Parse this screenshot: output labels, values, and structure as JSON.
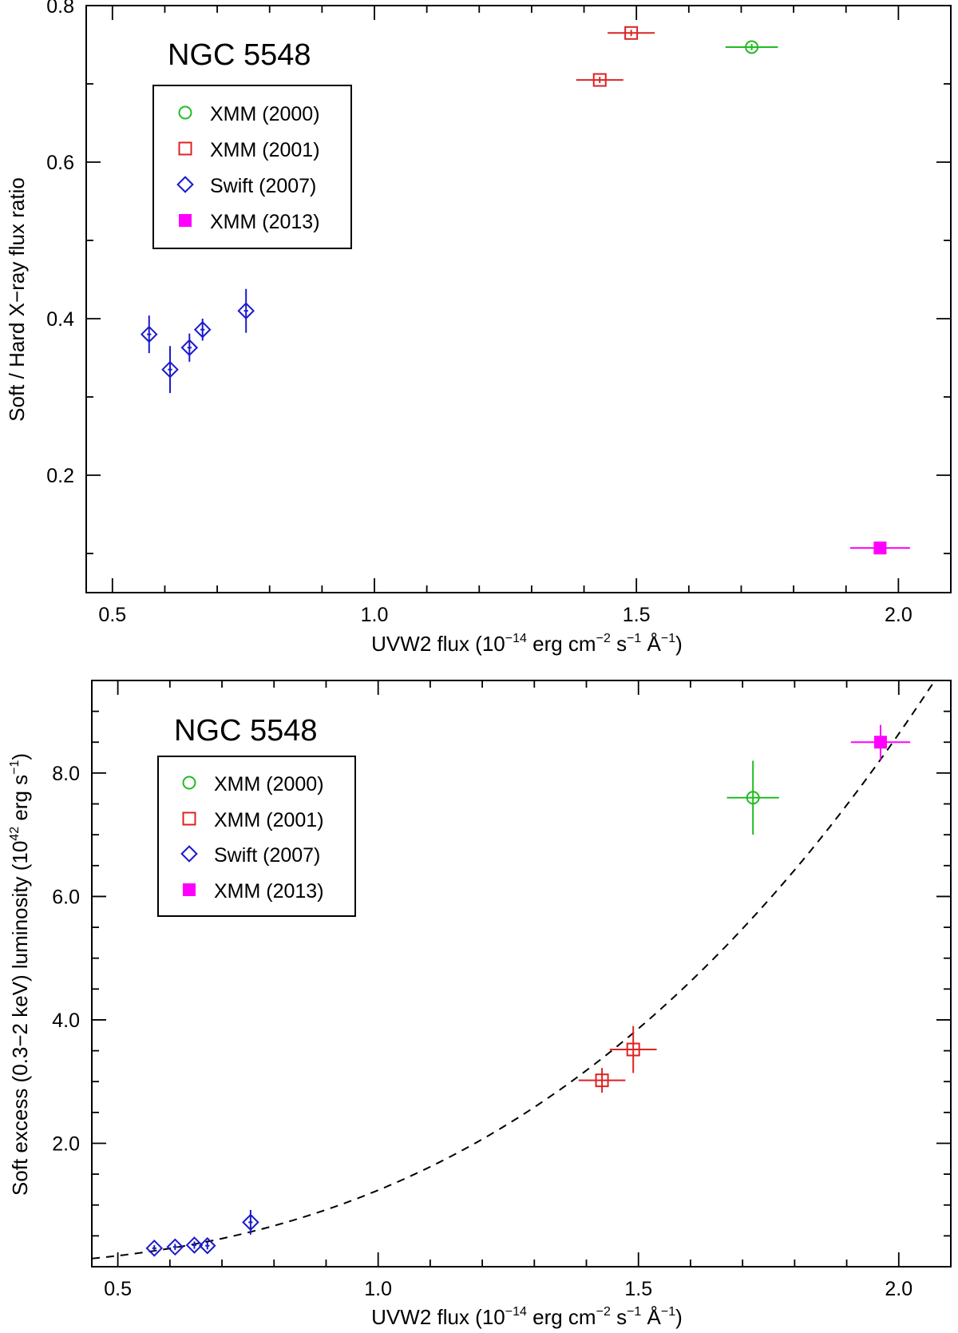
{
  "chart_data": [
    {
      "type": "scatter",
      "title": "NGC 5548",
      "xlabel": "UVW2 flux (10−14 erg cm−2 s−1 Å−1)",
      "xlabel_parts": {
        "pre": "UVW2 flux (10",
        "e1": "−14",
        "m1": " erg cm",
        "e2": "−2",
        "m2": " s",
        "e3": "−1",
        "m3": " Å",
        "e4": "−1",
        "post": ")"
      },
      "ylabel": "Soft / Hard X−ray flux ratio",
      "xlim": [
        0.45,
        2.1
      ],
      "ylim": [
        0.05,
        0.8
      ],
      "xticks": [
        0.5,
        1.0,
        1.5,
        2.0
      ],
      "xtick_labels": [
        "0.5",
        "1.0",
        "1.5",
        "2.0"
      ],
      "yticks": [
        0.2,
        0.4,
        0.6,
        0.8
      ],
      "ytick_labels": [
        "0.2",
        "0.4",
        "0.6",
        "0.8"
      ],
      "legend_position": "top-left",
      "series": [
        {
          "name": "XMM (2000)",
          "marker": "circle",
          "color": "#22bb22",
          "points": [
            {
              "x": 1.72,
              "y": 0.747,
              "xerr": 0.05,
              "yerr": 0.004
            }
          ]
        },
        {
          "name": "XMM (2001)",
          "marker": "square",
          "color": "#dd2222",
          "points": [
            {
              "x": 1.43,
              "y": 0.705,
              "xerr": 0.045,
              "yerr": 0.004
            },
            {
              "x": 1.49,
              "y": 0.765,
              "xerr": 0.045,
              "yerr": 0.004
            }
          ]
        },
        {
          "name": "Swift (2007)",
          "marker": "diamond",
          "color": "#1a1acc",
          "points": [
            {
              "x": 0.57,
              "y": 0.38,
              "xerr": 0.004,
              "yerr": 0.024
            },
            {
              "x": 0.61,
              "y": 0.335,
              "xerr": 0.004,
              "yerr": 0.03
            },
            {
              "x": 0.647,
              "y": 0.363,
              "xerr": 0.004,
              "yerr": 0.018
            },
            {
              "x": 0.672,
              "y": 0.386,
              "xerr": 0.004,
              "yerr": 0.014
            },
            {
              "x": 0.755,
              "y": 0.41,
              "xerr": 0.004,
              "yerr": 0.028
            }
          ]
        },
        {
          "name": "XMM (2013)",
          "marker": "filled-square",
          "color": "#ff00ff",
          "points": [
            {
              "x": 1.965,
              "y": 0.107,
              "xerr": 0.057,
              "yerr": 0.003
            }
          ]
        }
      ]
    },
    {
      "type": "scatter",
      "title": "NGC 5548",
      "xlabel": "UVW2 flux (10−14 erg cm−2 s−1 Å−1)",
      "xlabel_parts": {
        "pre": "UVW2 flux (10",
        "e1": "−14",
        "m1": " erg cm",
        "e2": "−2",
        "m2": " s",
        "e3": "−1",
        "m3": " Å",
        "e4": "−1",
        "post": ")"
      },
      "ylabel": "Soft excess (0.3−2 keV) luminosity (1042 erg s−1)",
      "ylabel_parts": {
        "pre": "Soft excess (0.3−2 keV) luminosity (10",
        "e1": "42",
        "m1": " erg s",
        "e2": "−1",
        "post": ")"
      },
      "xlim": [
        0.45,
        2.1
      ],
      "ylim": [
        0.0,
        9.5
      ],
      "xticks": [
        0.5,
        1.0,
        1.5,
        2.0
      ],
      "xtick_labels": [
        "0.5",
        "1.0",
        "1.5",
        "2.0"
      ],
      "yticks": [
        2.0,
        4.0,
        6.0,
        8.0
      ],
      "ytick_labels": [
        "2.0",
        "4.0",
        "6.0",
        "8.0"
      ],
      "legend_position": "top-left",
      "fit": {
        "type": "power-law",
        "style": "dashed",
        "x0": 1.0,
        "a": 1.24,
        "k": 2.8
      },
      "series": [
        {
          "name": "XMM (2000)",
          "marker": "circle",
          "color": "#22bb22",
          "points": [
            {
              "x": 1.72,
              "y": 7.6,
              "xerr": 0.05,
              "yerr": 0.6
            }
          ]
        },
        {
          "name": "XMM (2001)",
          "marker": "square",
          "color": "#dd2222",
          "points": [
            {
              "x": 1.43,
              "y": 3.02,
              "xerr": 0.045,
              "yerr": 0.2
            },
            {
              "x": 1.49,
              "y": 3.52,
              "xerr": 0.045,
              "yerr": 0.38
            }
          ]
        },
        {
          "name": "Swift (2007)",
          "marker": "diamond",
          "color": "#1a1acc",
          "points": [
            {
              "x": 0.57,
              "y": 0.3,
              "xerr": 0.004,
              "yerr": 0.05
            },
            {
              "x": 0.61,
              "y": 0.32,
              "xerr": 0.004,
              "yerr": 0.05
            },
            {
              "x": 0.647,
              "y": 0.35,
              "xerr": 0.004,
              "yerr": 0.06
            },
            {
              "x": 0.672,
              "y": 0.34,
              "xerr": 0.004,
              "yerr": 0.06
            },
            {
              "x": 0.755,
              "y": 0.72,
              "xerr": 0.004,
              "yerr": 0.2
            }
          ]
        },
        {
          "name": "XMM (2013)",
          "marker": "filled-square",
          "color": "#ff00ff",
          "points": [
            {
              "x": 1.965,
              "y": 8.5,
              "xerr": 0.057,
              "yerr": 0.28
            }
          ]
        }
      ]
    }
  ]
}
